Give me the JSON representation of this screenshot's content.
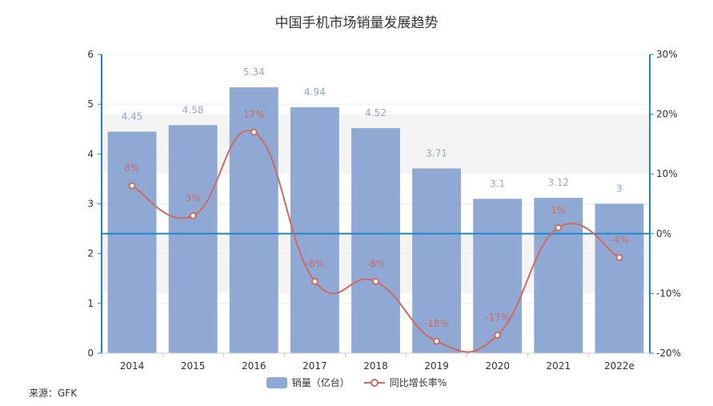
{
  "chart_data": {
    "type": "bar",
    "title": "中国手机市场销量发展趋势",
    "categories": [
      "2014",
      "2015",
      "2016",
      "2017",
      "2018",
      "2019",
      "2020",
      "2021",
      "2022e"
    ],
    "series": [
      {
        "name": "销量（亿台）",
        "type": "bar",
        "axis": "left",
        "values": [
          4.45,
          4.58,
          5.34,
          4.94,
          4.52,
          3.71,
          3.1,
          3.12,
          3
        ],
        "labels": [
          "4.45",
          "4.58",
          "5.34",
          "4.94",
          "4.52",
          "3.71",
          "3.1",
          "3.12",
          "3"
        ],
        "color": "#8fa8d4"
      },
      {
        "name": "同比增长率%",
        "type": "line",
        "axis": "right",
        "values": [
          8,
          3,
          17,
          -8,
          -8,
          -18,
          -17,
          1,
          -4
        ],
        "labels": [
          "8%",
          "3%",
          "17%",
          "-8%",
          "-8%",
          "-18%",
          "-17%",
          "1%",
          "-4%"
        ],
        "color": "#cd6a62"
      }
    ],
    "y_left": {
      "min": 0,
      "max": 6,
      "ticks": [
        "0",
        "1",
        "2",
        "3",
        "4",
        "5",
        "6"
      ]
    },
    "y_right": {
      "min": -20,
      "max": 30,
      "ticks": [
        "-20%",
        "-10%",
        "0%",
        "10%",
        "20%",
        "30%"
      ]
    },
    "legend_position": "bottom-center",
    "grid": true
  },
  "source_note": "来源：GFK",
  "colors": {
    "axis": "#1e88c8",
    "bar_label": "#8fa8d4",
    "line_label": "#cd6a62"
  }
}
